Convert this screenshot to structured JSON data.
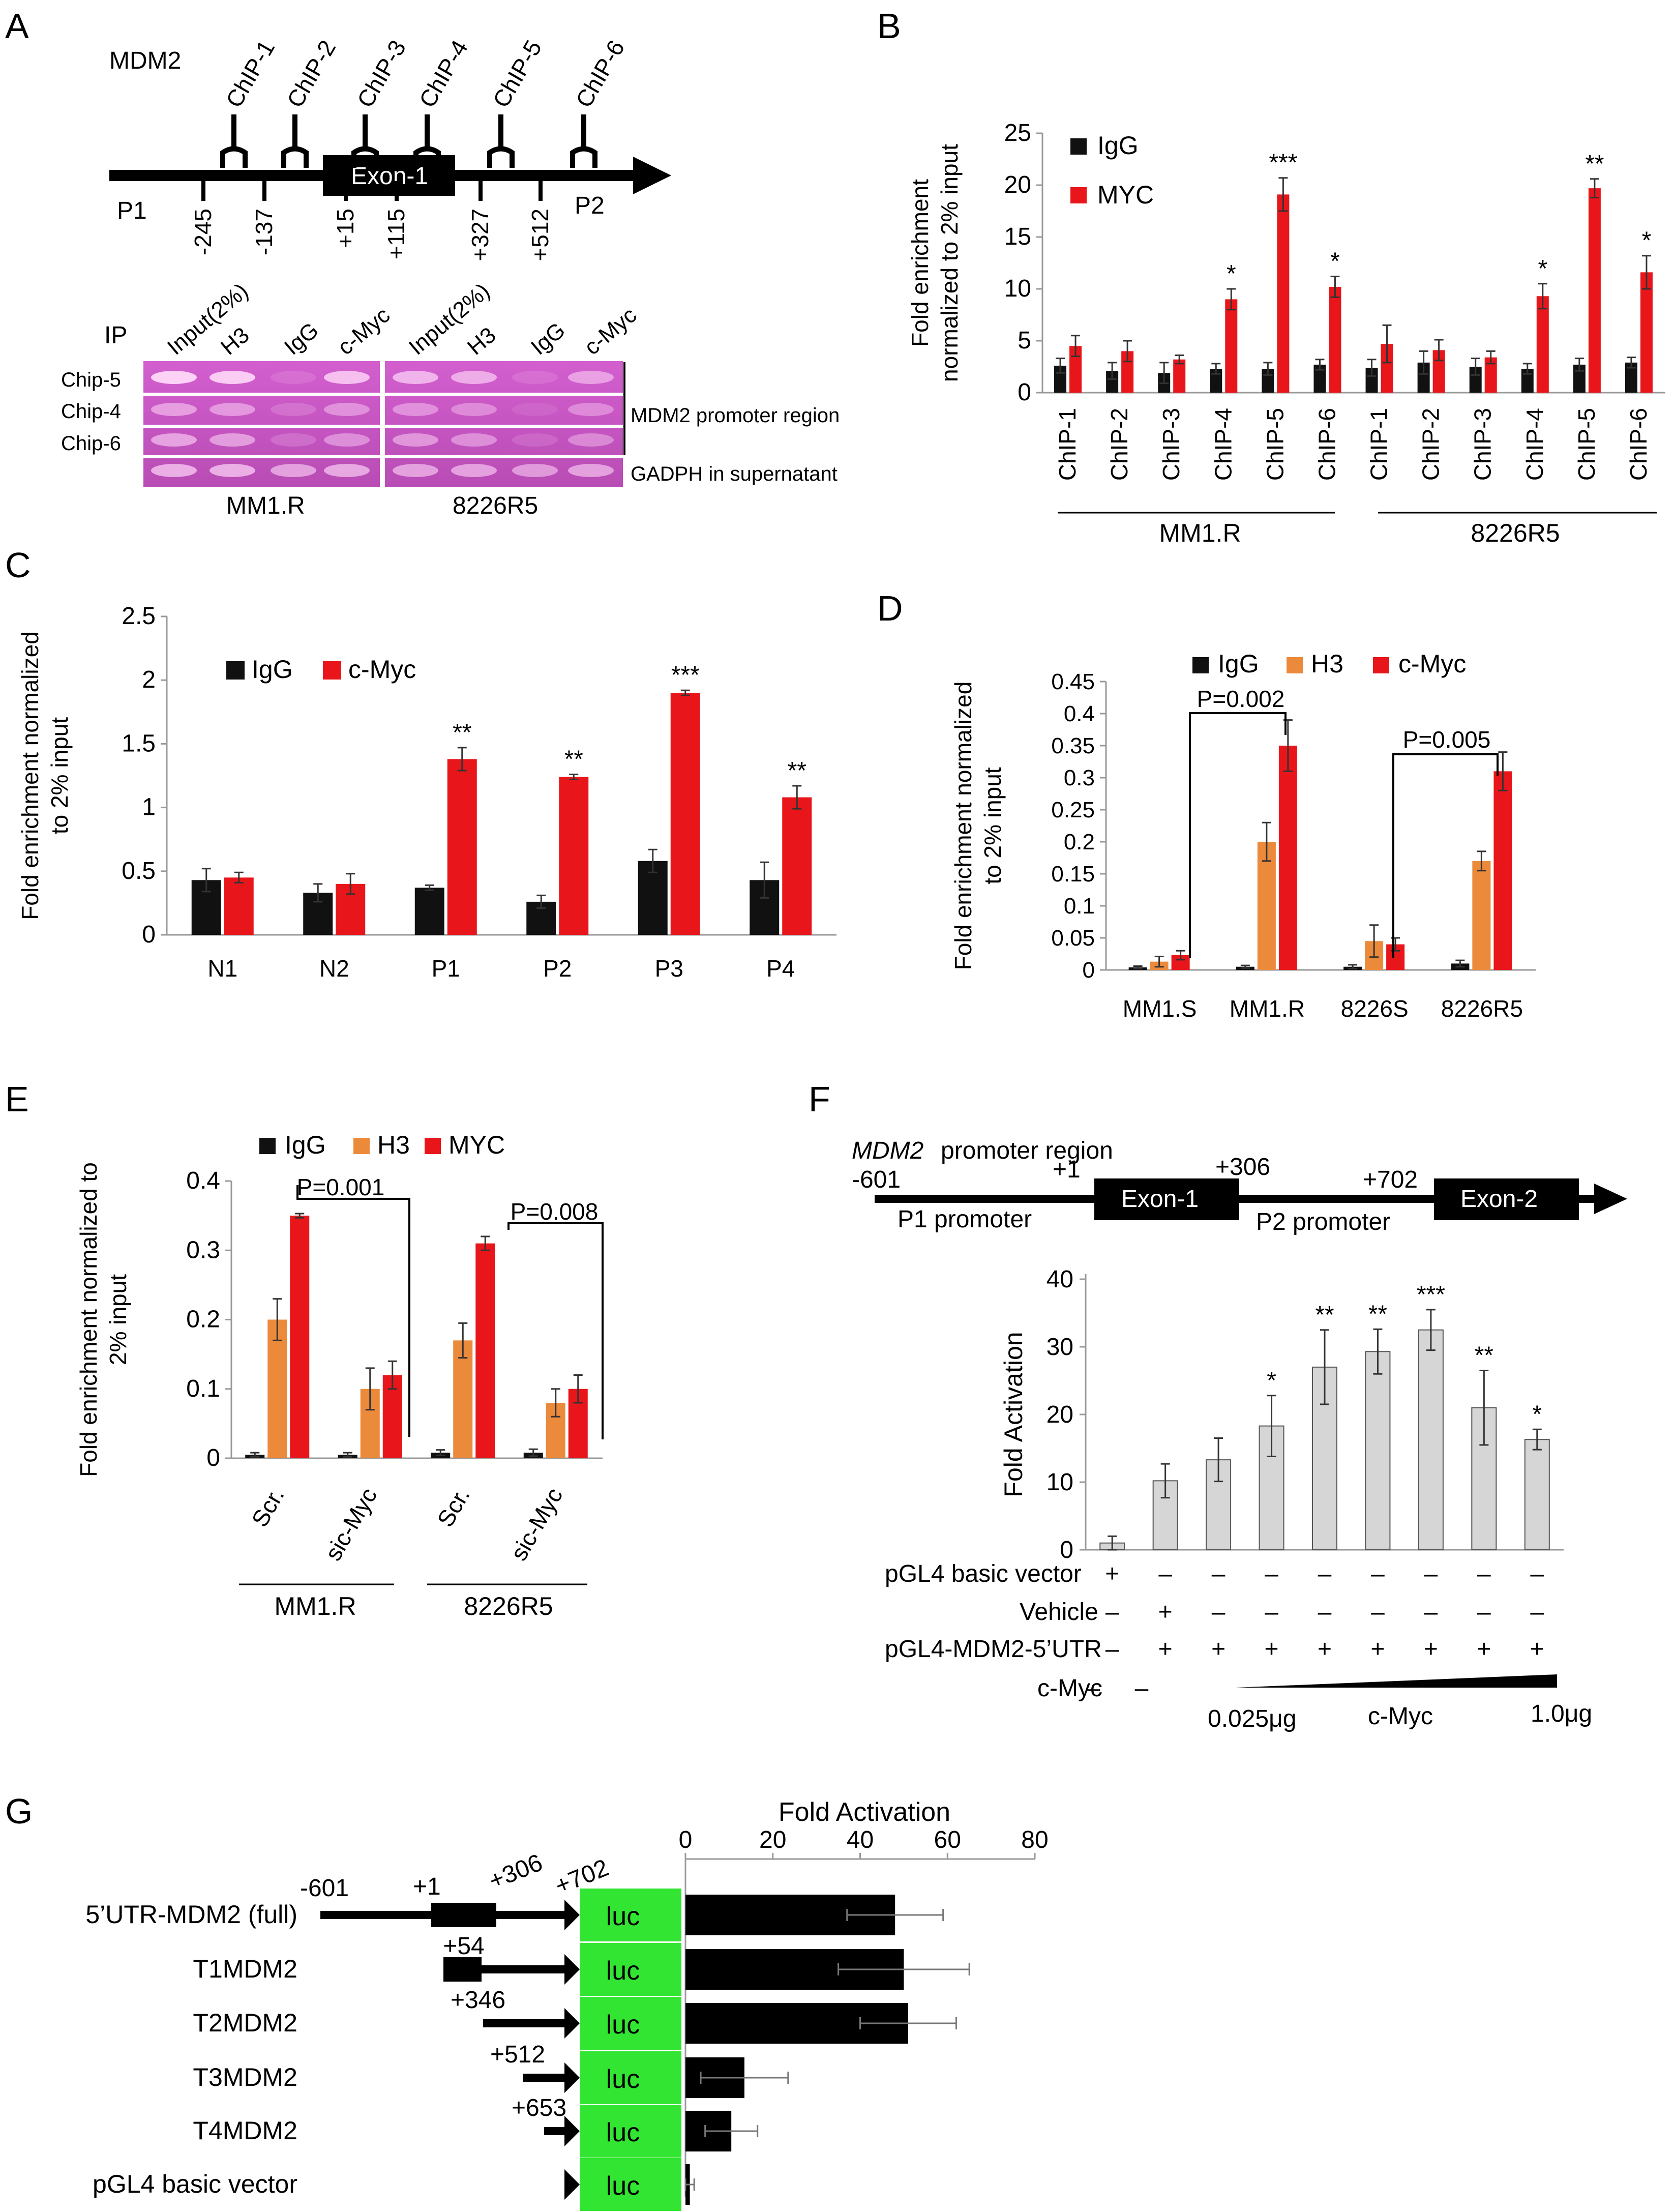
{
  "colors": {
    "igg": "#111111",
    "myc": "#e8161b",
    "h3": "#ec8a3c",
    "grey_bar": "#d6d6d6",
    "luc_box": "#33e533",
    "gel_bg": "#c84fbf",
    "gel_band": "#f0a0e8"
  },
  "panels": {
    "a": "A",
    "b": "B",
    "c": "C",
    "d": "D",
    "e": "E",
    "f": "F",
    "g": "G"
  },
  "panel_a": {
    "gene": "MDM2",
    "chip_labels": [
      "ChIP-1",
      "ChIP-2",
      "ChIP-3",
      "ChIP-4",
      "ChIP-5",
      "ChIP-6"
    ],
    "exon": "Exon-1",
    "p1": "P1",
    "p2": "P2",
    "positions": [
      "-245",
      "-137",
      "+15",
      "+115",
      "+327",
      "+512"
    ],
    "ip_label": "IP",
    "lane_labels": [
      "Input(2%)",
      "H3",
      "IgG",
      "c-Myc"
    ],
    "row_labels": [
      "Chip-5",
      "Chip-4",
      "Chip-6"
    ],
    "bracket_label": "MDM2 promoter region",
    "control_label": "GADPH in supernatant",
    "cell_lines": [
      "MM1.R",
      "8226R5"
    ]
  },
  "panel_f": {
    "title_gene": "MDM2",
    "title_rest": " promoter region",
    "positions": [
      "-601",
      "+1",
      "+306",
      "+702"
    ],
    "exons": [
      "Exon-1",
      "Exon-2"
    ],
    "promoters": [
      "P1 promoter",
      "P2 promoter"
    ],
    "row_labels": [
      "pGL4 basic vector",
      "Vehicle",
      "pGL4-MDM2-5’UTR",
      "c-Myc"
    ],
    "row_marks": [
      [
        "+",
        "–",
        "–",
        "–",
        "–",
        "–",
        "–",
        "–",
        "–"
      ],
      [
        "–",
        "+",
        "–",
        "–",
        "–",
        "–",
        "–",
        "–",
        "–"
      ],
      [
        "–",
        "+",
        "+",
        "+",
        "+",
        "+",
        "+",
        "+",
        "+"
      ],
      [
        "–",
        "–"
      ]
    ],
    "dose_low": "0.025μg",
    "dose_mid": "c-Myc",
    "dose_high": "1.0μg"
  },
  "panel_g": {
    "constructs": [
      {
        "name": "5’UTR-MDM2 (full)",
        "start": "",
        "positions": [
          "-601",
          "+1",
          "+306",
          "+702"
        ]
      },
      {
        "name": "T1MDM2",
        "start": "+54"
      },
      {
        "name": "T2MDM2",
        "start": "+346"
      },
      {
        "name": "T3MDM2",
        "start": "+512"
      },
      {
        "name": "T4MDM2",
        "start": "+653"
      },
      {
        "name": "pGL4 basic vector",
        "start": ""
      }
    ],
    "luc": "luc"
  },
  "chart_data": [
    {
      "id": "B",
      "type": "bar",
      "ylabel": "Fold enrichment normalized to 2% input",
      "ylim": [
        0,
        25
      ],
      "yticks": [
        "0",
        "5",
        "10",
        "15",
        "20",
        "25"
      ],
      "categories": [
        "ChIP-1",
        "ChIP-2",
        "ChIP-3",
        "ChIP-4",
        "ChIP-5",
        "ChIP-6",
        "ChIP-1",
        "ChIP-2",
        "ChIP-3",
        "ChIP-4",
        "ChIP-5",
        "ChIP-6"
      ],
      "groups": [
        "MM1.R",
        "8226R5"
      ],
      "series": [
        {
          "name": "IgG",
          "values": [
            2.6,
            2.1,
            1.9,
            2.3,
            2.3,
            2.7,
            2.4,
            2.9,
            2.5,
            2.3,
            2.7,
            2.9
          ],
          "errors": [
            0.7,
            0.8,
            1.0,
            0.5,
            0.6,
            0.5,
            0.8,
            1.1,
            0.8,
            0.5,
            0.6,
            0.5
          ]
        },
        {
          "name": "MYC",
          "values": [
            4.5,
            4.0,
            3.2,
            9.0,
            19.1,
            10.2,
            4.7,
            4.1,
            3.4,
            9.3,
            19.7,
            11.6
          ],
          "errors": [
            1.0,
            1.0,
            0.4,
            1.0,
            1.6,
            1.0,
            1.8,
            1.0,
            0.6,
            1.2,
            0.9,
            1.6
          ]
        }
      ],
      "annotations": [
        "",
        "",
        "",
        "*",
        "***",
        "*",
        "",
        "",
        "",
        "*",
        "**",
        "*"
      ]
    },
    {
      "id": "C",
      "type": "bar",
      "ylabel": "Fold enrichment normalized to 2% input",
      "ylim": [
        0,
        2.5
      ],
      "yticks": [
        "0",
        "0.5",
        "1",
        "1.5",
        "2",
        "2.5"
      ],
      "categories": [
        "N1",
        "N2",
        "P1",
        "P2",
        "P3",
        "P4"
      ],
      "series": [
        {
          "name": "IgG",
          "values": [
            0.43,
            0.33,
            0.37,
            0.26,
            0.58,
            0.43
          ],
          "errors": [
            0.09,
            0.07,
            0.02,
            0.05,
            0.09,
            0.14
          ]
        },
        {
          "name": "c-Myc",
          "values": [
            0.45,
            0.4,
            1.38,
            1.24,
            1.9,
            1.08
          ],
          "errors": [
            0.04,
            0.08,
            0.09,
            0.02,
            0.02,
            0.09
          ]
        }
      ],
      "annotations": [
        "",
        "",
        "**",
        "**",
        "***",
        "**"
      ]
    },
    {
      "id": "D",
      "type": "bar",
      "ylabel": "Fold enrichment normalized to 2% input",
      "ylim": [
        0,
        0.45
      ],
      "yticks": [
        "0",
        "0.05",
        "0.1",
        "0.15",
        "0.2",
        "0.25",
        "0.3",
        "0.35",
        "0.4",
        "0.45"
      ],
      "categories": [
        "MM1.S",
        "MM1.R",
        "8226S",
        "8226R5"
      ],
      "series": [
        {
          "name": "IgG",
          "values": [
            0.004,
            0.005,
            0.005,
            0.01
          ],
          "errors": [
            0.002,
            0.002,
            0.003,
            0.005
          ]
        },
        {
          "name": "H3",
          "values": [
            0.013,
            0.2,
            0.045,
            0.17
          ],
          "errors": [
            0.008,
            0.03,
            0.025,
            0.015
          ]
        },
        {
          "name": "c-Myc",
          "values": [
            0.023,
            0.35,
            0.04,
            0.31
          ],
          "errors": [
            0.007,
            0.04,
            0.01,
            0.03
          ]
        }
      ],
      "pvalues": [
        "P=0.002",
        "P=0.005"
      ]
    },
    {
      "id": "E",
      "type": "bar",
      "ylabel": "Fold enrichment normalized to 2% input",
      "ylim": [
        0,
        0.4
      ],
      "yticks": [
        "0",
        "0.1",
        "0.2",
        "0.3",
        "0.4"
      ],
      "categories": [
        "Scr.",
        "sic-Myc",
        "Scr.",
        "sic-Myc"
      ],
      "groups": [
        "MM1.R",
        "8226R5"
      ],
      "series": [
        {
          "name": "IgG",
          "values": [
            0.005,
            0.005,
            0.008,
            0.008
          ],
          "errors": [
            0.003,
            0.003,
            0.004,
            0.005
          ]
        },
        {
          "name": "H3",
          "values": [
            0.2,
            0.1,
            0.17,
            0.08
          ],
          "errors": [
            0.03,
            0.03,
            0.025,
            0.02
          ]
        },
        {
          "name": "MYC",
          "values": [
            0.35,
            0.12,
            0.31,
            0.1
          ],
          "errors": [
            0.003,
            0.02,
            0.01,
            0.02
          ]
        }
      ],
      "pvalues": [
        "P=0.001",
        "P=0.008"
      ]
    },
    {
      "id": "F",
      "type": "bar",
      "ylabel": "Fold Activation",
      "ylim": [
        0,
        40
      ],
      "yticks": [
        "0",
        "10",
        "20",
        "30",
        "40"
      ],
      "values": [
        1.0,
        10.2,
        13.3,
        18.3,
        27.0,
        29.3,
        32.5,
        21.0,
        16.3
      ],
      "errors": [
        1.0,
        2.5,
        3.2,
        4.5,
        5.5,
        3.3,
        3.0,
        5.5,
        1.5
      ],
      "annotations": [
        "",
        "",
        "",
        "*",
        "**",
        "**",
        "***",
        "**",
        "*"
      ]
    },
    {
      "id": "G",
      "type": "bar",
      "orientation": "horizontal",
      "xlabel": "Fold Activation",
      "xlim": [
        0,
        80
      ],
      "xticks": [
        "0",
        "20",
        "40",
        "60",
        "80"
      ],
      "categories": [
        "5’UTR-MDM2 (full)",
        "T1MDM2",
        "T2MDM2",
        "T3MDM2",
        "T4MDM2",
        "pGL4 basic vector"
      ],
      "values": [
        48,
        50,
        51,
        13.5,
        10.5,
        1
      ],
      "errors": [
        11,
        15,
        11,
        10,
        6,
        1
      ]
    }
  ]
}
